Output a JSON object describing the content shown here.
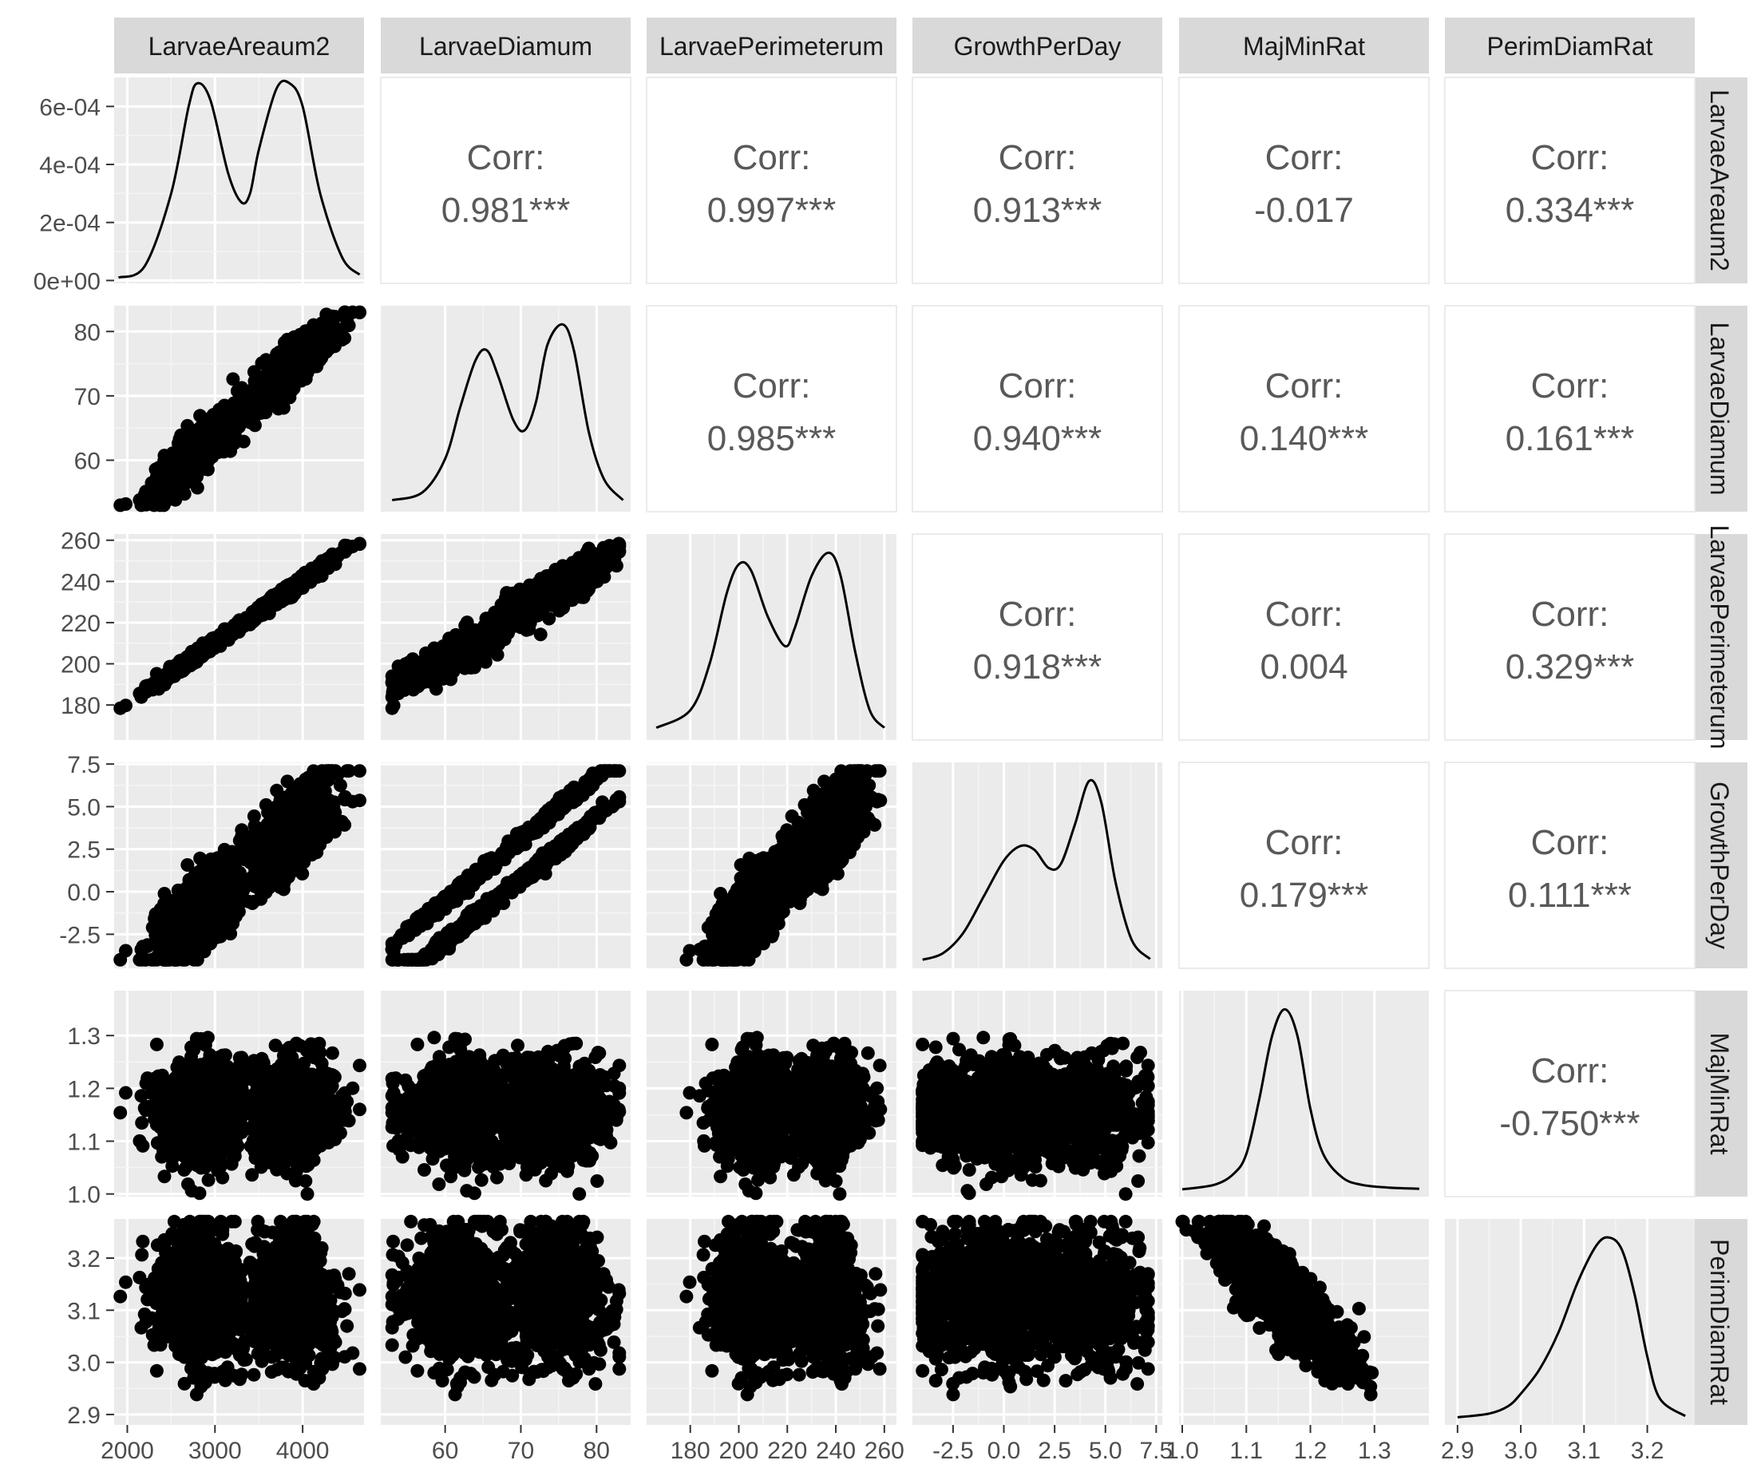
{
  "chart_data": {
    "type": "scatter-matrix",
    "variables": [
      "LarvaeAreaum2",
      "LarvaeDiamum",
      "LarvaePerimeterum",
      "GrowthPerDay",
      "MajMinRat",
      "PerimDiamRat"
    ],
    "strip_labels_top": [
      "LarvaeAreaum2",
      "LarvaeDiamum",
      "LarvaePerimeterum",
      "GrowthPerDay",
      "MajMinRat",
      "PerimDiamRat"
    ],
    "strip_labels_right": [
      "LarvaeAreaum2",
      "LarvaeDiamum",
      "LarvaePerimeterum",
      "GrowthPerDay",
      "MajMinRat",
      "PerimDiamRat"
    ],
    "corr_label": "Corr:",
    "correlations": [
      {
        "row": 0,
        "col": 1,
        "value": "0.981***"
      },
      {
        "row": 0,
        "col": 2,
        "value": "0.997***"
      },
      {
        "row": 0,
        "col": 3,
        "value": "0.913***"
      },
      {
        "row": 0,
        "col": 4,
        "value": "-0.017"
      },
      {
        "row": 0,
        "col": 5,
        "value": "0.334***"
      },
      {
        "row": 1,
        "col": 2,
        "value": "0.985***"
      },
      {
        "row": 1,
        "col": 3,
        "value": "0.940***"
      },
      {
        "row": 1,
        "col": 4,
        "value": "0.140***"
      },
      {
        "row": 1,
        "col": 5,
        "value": "0.161***"
      },
      {
        "row": 2,
        "col": 3,
        "value": "0.918***"
      },
      {
        "row": 2,
        "col": 4,
        "value": "0.004"
      },
      {
        "row": 2,
        "col": 5,
        "value": "0.329***"
      },
      {
        "row": 3,
        "col": 4,
        "value": "0.179***"
      },
      {
        "row": 3,
        "col": 5,
        "value": "0.111***"
      },
      {
        "row": 4,
        "col": 5,
        "value": "-0.750***"
      }
    ],
    "x_axes": [
      {
        "range": [
          1850,
          4700
        ],
        "ticks": [
          2000,
          3000,
          4000
        ],
        "tick_labels": [
          "2000",
          "3000",
          "4000"
        ]
      },
      {
        "range": [
          51.5,
          84.5
        ],
        "ticks": [
          60,
          70,
          80
        ],
        "tick_labels": [
          "60",
          "70",
          "80"
        ]
      },
      {
        "range": [
          162,
          265
        ],
        "ticks": [
          180,
          200,
          220,
          240,
          260
        ],
        "tick_labels": [
          "180",
          "200",
          "220",
          "240",
          "260"
        ]
      },
      {
        "range": [
          -4.5,
          7.8
        ],
        "ticks": [
          -2.5,
          0,
          2.5,
          5,
          7.5
        ],
        "tick_labels": [
          "-2.5",
          "0.0",
          "2.5",
          "5.0",
          "7.5"
        ]
      },
      {
        "range": [
          0.995,
          1.385
        ],
        "ticks": [
          1.0,
          1.1,
          1.2,
          1.3
        ],
        "tick_labels": [
          "1.0",
          "1.1",
          "1.2",
          "1.3"
        ]
      },
      {
        "range": [
          2.88,
          3.275
        ],
        "ticks": [
          2.9,
          3.0,
          3.1,
          3.2
        ],
        "tick_labels": [
          "2.9",
          "3.0",
          "3.1",
          "3.2"
        ]
      }
    ],
    "y_axes": [
      {
        "range": [
          -1e-05,
          0.0007
        ],
        "ticks": [
          0,
          0.0002,
          0.0004,
          0.0006
        ],
        "tick_labels": [
          "0e+00",
          "2e-04",
          "4e-04",
          "6e-04"
        ]
      },
      {
        "range": [
          52,
          84
        ],
        "ticks": [
          60,
          70,
          80
        ],
        "tick_labels": [
          "60",
          "70",
          "80"
        ]
      },
      {
        "range": [
          163,
          263
        ],
        "ticks": [
          180,
          200,
          220,
          240,
          260
        ],
        "tick_labels": [
          "180",
          "200",
          "220",
          "240",
          "260"
        ]
      },
      {
        "range": [
          -4.5,
          7.6
        ],
        "ticks": [
          -2.5,
          0,
          2.5,
          5,
          7.5
        ],
        "tick_labels": [
          "-2.5",
          "0.0",
          "2.5",
          "5.0",
          "7.5"
        ]
      },
      {
        "range": [
          0.995,
          1.385
        ],
        "ticks": [
          1.0,
          1.1,
          1.2,
          1.3
        ],
        "tick_labels": [
          "1.0",
          "1.1",
          "1.2",
          "1.3"
        ]
      },
      {
        "range": [
          2.88,
          3.275
        ],
        "ticks": [
          2.9,
          3.0,
          3.1,
          3.2
        ],
        "tick_labels": [
          "2.9",
          "3.0",
          "3.1",
          "3.2"
        ]
      }
    ],
    "densities": [
      {
        "var": 0,
        "x": [
          1900,
          2200,
          2500,
          2700,
          2800,
          2950,
          3150,
          3300,
          3400,
          3500,
          3700,
          3850,
          4000,
          4200,
          4450,
          4650
        ],
        "y": [
          1e-05,
          5e-05,
          0.0003,
          0.0006,
          0.00068,
          0.00062,
          0.00037,
          0.00027,
          0.0003,
          0.00045,
          0.00066,
          0.00068,
          0.0006,
          0.0003,
          8e-05,
          2e-05
        ]
      },
      {
        "var": 1,
        "x": [
          53,
          57,
          60,
          62,
          64,
          65.5,
          67,
          69,
          70.5,
          72,
          73.5,
          75.5,
          77,
          79,
          81,
          83.5
        ],
        "y": [
          0.002,
          0.005,
          0.018,
          0.038,
          0.056,
          0.06,
          0.05,
          0.033,
          0.029,
          0.04,
          0.062,
          0.07,
          0.06,
          0.028,
          0.01,
          0.002
        ]
      },
      {
        "var": 2,
        "x": [
          166,
          180,
          188,
          195,
          200,
          205,
          212,
          219,
          223,
          230,
          237,
          242,
          248,
          254,
          260
        ],
        "y": [
          0.001,
          0.004,
          0.012,
          0.024,
          0.029,
          0.028,
          0.02,
          0.015,
          0.018,
          0.027,
          0.031,
          0.027,
          0.014,
          0.004,
          0.001
        ]
      },
      {
        "var": 3,
        "x": [
          -4,
          -3,
          -2,
          -1,
          0,
          0.8,
          1.5,
          2.2,
          2.8,
          3.5,
          4.2,
          4.8,
          5.5,
          6.3,
          7.2
        ],
        "y": [
          0.003,
          0.012,
          0.04,
          0.09,
          0.14,
          0.16,
          0.155,
          0.13,
          0.135,
          0.19,
          0.25,
          0.22,
          0.11,
          0.03,
          0.004
        ]
      },
      {
        "var": 4,
        "x": [
          1.0,
          1.05,
          1.08,
          1.1,
          1.12,
          1.14,
          1.16,
          1.18,
          1.2,
          1.22,
          1.25,
          1.28,
          1.32,
          1.37
        ],
        "y": [
          0.05,
          0.3,
          0.9,
          2.0,
          5.0,
          8.5,
          10.0,
          8.5,
          4.5,
          2.0,
          0.7,
          0.3,
          0.15,
          0.08
        ]
      },
      {
        "var": 5,
        "x": [
          2.9,
          2.95,
          2.98,
          3.0,
          3.03,
          3.06,
          3.09,
          3.12,
          3.14,
          3.16,
          3.18,
          3.2,
          3.22,
          3.26
        ],
        "y": [
          0.05,
          0.2,
          0.5,
          1.0,
          2.0,
          3.5,
          5.5,
          7.0,
          7.3,
          6.8,
          5.0,
          2.5,
          0.8,
          0.1
        ]
      }
    ],
    "scatter_ranges": {
      "LarvaeAreaum2": [
        1920,
        4650
      ],
      "LarvaeDiamum": [
        53,
        83
      ],
      "LarvaePerimeterum": [
        165,
        260
      ],
      "GrowthPerDay": [
        -4.0,
        7.1
      ],
      "MajMinRat": [
        1.0,
        1.37
      ],
      "PerimDiamRat": [
        2.89,
        3.27
      ]
    },
    "grid": true,
    "legend": "none"
  }
}
